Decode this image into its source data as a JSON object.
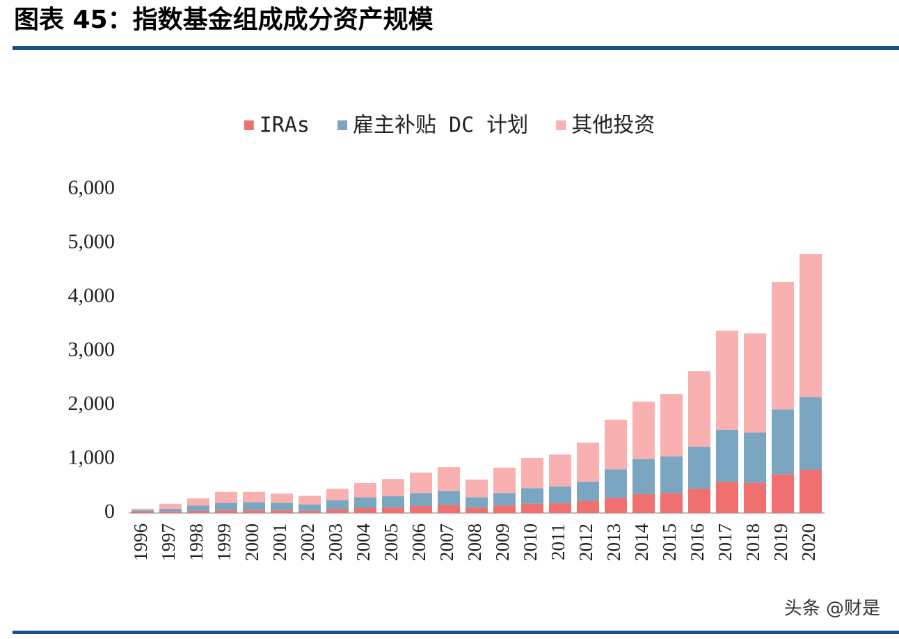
{
  "chart_data": {
    "type": "bar",
    "stacked": true,
    "title": "图表 45：指数基金组成成分资产规模",
    "categories": [
      "1996",
      "1997",
      "1998",
      "1999",
      "2000",
      "2001",
      "2002",
      "2003",
      "2004",
      "2005",
      "2006",
      "2007",
      "2008",
      "2009",
      "2010",
      "2011",
      "2012",
      "2013",
      "2014",
      "2015",
      "2016",
      "2017",
      "2018",
      "2019",
      "2020"
    ],
    "series": [
      {
        "name": "IRAs",
        "color": "#f07070",
        "values": [
          20,
          30,
          40,
          50,
          50,
          50,
          40,
          70,
          90,
          100,
          130,
          150,
          100,
          140,
          170,
          180,
          220,
          280,
          350,
          370,
          450,
          580,
          560,
          720,
          800
        ]
      },
      {
        "name": "雇主补贴 DC 计划",
        "color": "#7aa6c2",
        "values": [
          30,
          50,
          100,
          140,
          150,
          140,
          120,
          170,
          200,
          210,
          240,
          260,
          190,
          230,
          290,
          310,
          360,
          530,
          650,
          680,
          780,
          960,
          930,
          1200,
          1350
        ]
      },
      {
        "name": "其他投资",
        "color": "#f8b0b0",
        "values": [
          30,
          90,
          130,
          200,
          190,
          170,
          160,
          210,
          265,
          320,
          380,
          440,
          330,
          470,
          560,
          595,
          725,
          920,
          1065,
          1155,
          1400,
          1840,
          1840,
          2365,
          2650
        ]
      }
    ],
    "ylim": [
      0,
      6000
    ],
    "yticks": [
      0,
      {
        "value": 1000,
        "label": "1,000"
      },
      {
        "value": 2000,
        "label": "2,000"
      },
      {
        "value": 3000,
        "label": "3,000"
      },
      {
        "value": 4000,
        "label": "4,000"
      },
      {
        "value": 5000,
        "label": "5,000"
      },
      {
        "value": 6000,
        "label": "6,000"
      }
    ],
    "legend": "top",
    "watermark": "头条 @财是"
  }
}
